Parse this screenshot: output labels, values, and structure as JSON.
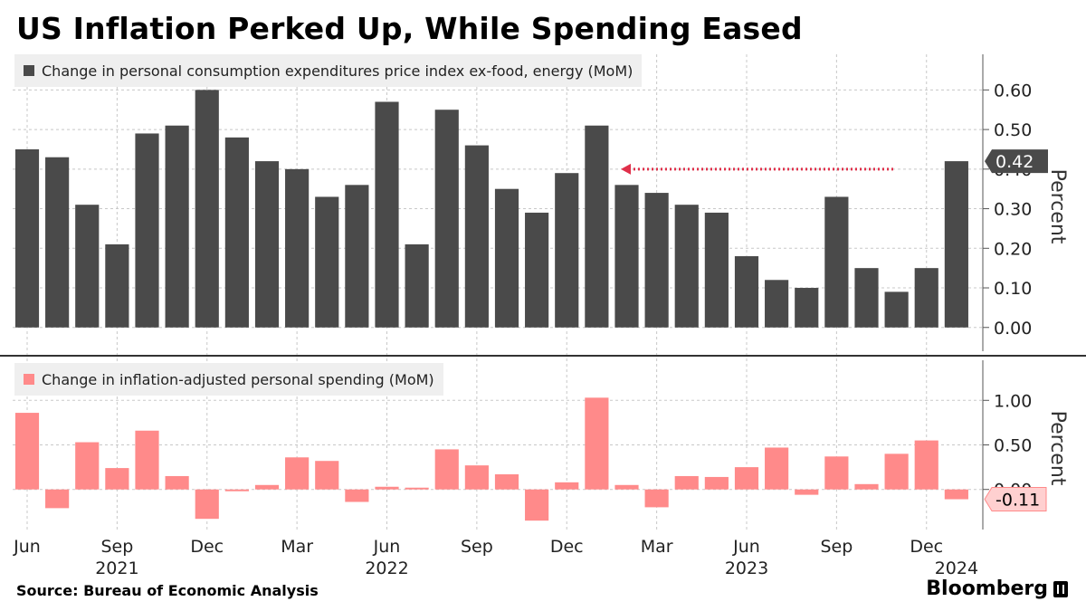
{
  "title": "US Inflation Perked Up, While Spending Eased",
  "source": "Source: Bureau of Economic Analysis",
  "brand": "Bloomberg",
  "colors": {
    "top_bars": "#4a4a4a",
    "bottom_bars": "#ff8a8a",
    "arrow": "#e0304a"
  },
  "chart_data": [
    {
      "type": "bar",
      "legend": "Change in personal consumption expenditures price index ex-food, energy (MoM)",
      "ylabel": "Percent",
      "ylim": [
        -0.06,
        0.69
      ],
      "yticks": [
        "0.60",
        "0.50",
        "0.40",
        "0.30",
        "0.20",
        "0.10",
        "0.00"
      ],
      "last_value_label": "0.42",
      "annotation": "arrow pointing left toward previous bars",
      "categories": [
        "2021-06",
        "2021-07",
        "2021-08",
        "2021-09",
        "2021-10",
        "2021-11",
        "2021-12",
        "2022-01",
        "2022-02",
        "2022-03",
        "2022-04",
        "2022-05",
        "2022-06",
        "2022-07",
        "2022-08",
        "2022-09",
        "2022-10",
        "2022-11",
        "2022-12",
        "2023-01",
        "2023-02",
        "2023-03",
        "2023-04",
        "2023-05",
        "2023-06",
        "2023-07",
        "2023-08",
        "2023-09",
        "2023-10",
        "2023-11",
        "2023-12",
        "2024-01"
      ],
      "values": [
        0.45,
        0.43,
        0.31,
        0.21,
        0.49,
        0.51,
        0.6,
        0.48,
        0.42,
        0.4,
        0.33,
        0.36,
        0.57,
        0.21,
        0.55,
        0.46,
        0.35,
        0.29,
        0.39,
        0.51,
        0.36,
        0.34,
        0.31,
        0.29,
        0.18,
        0.12,
        0.1,
        0.33,
        0.15,
        0.09,
        0.15,
        0.42
      ],
      "grid": true
    },
    {
      "type": "bar",
      "legend": "Change in inflation-adjusted personal spending (MoM)",
      "ylabel": "Percent",
      "ylim": [
        -0.45,
        1.45
      ],
      "yticks": [
        "1.00",
        "0.50",
        "0.00"
      ],
      "last_value_label": "-0.11",
      "categories": [
        "2021-06",
        "2021-07",
        "2021-08",
        "2021-09",
        "2021-10",
        "2021-11",
        "2021-12",
        "2022-01",
        "2022-02",
        "2022-03",
        "2022-04",
        "2022-05",
        "2022-06",
        "2022-07",
        "2022-08",
        "2022-09",
        "2022-10",
        "2022-11",
        "2022-12",
        "2023-01",
        "2023-02",
        "2023-03",
        "2023-04",
        "2023-05",
        "2023-06",
        "2023-07",
        "2023-08",
        "2023-09",
        "2023-10",
        "2023-11",
        "2023-12",
        "2024-01"
      ],
      "values": [
        0.86,
        -0.21,
        0.53,
        0.24,
        0.66,
        0.15,
        -0.33,
        -0.02,
        0.05,
        0.36,
        0.32,
        -0.14,
        0.03,
        0.02,
        0.45,
        0.27,
        0.17,
        -0.35,
        0.08,
        1.03,
        0.05,
        -0.2,
        0.15,
        0.14,
        0.25,
        0.47,
        -0.06,
        0.37,
        0.06,
        0.4,
        0.55,
        -0.11
      ],
      "grid": true
    }
  ],
  "x_axis": {
    "month_labels": [
      {
        "index": 0,
        "label": "Jun"
      },
      {
        "index": 3,
        "label": "Sep"
      },
      {
        "index": 6,
        "label": "Dec"
      },
      {
        "index": 9,
        "label": "Mar"
      },
      {
        "index": 12,
        "label": "Jun"
      },
      {
        "index": 15,
        "label": "Sep"
      },
      {
        "index": 18,
        "label": "Dec"
      },
      {
        "index": 21,
        "label": "Mar"
      },
      {
        "index": 24,
        "label": "Jun"
      },
      {
        "index": 27,
        "label": "Sep"
      },
      {
        "index": 30,
        "label": "Dec"
      }
    ],
    "year_labels": [
      {
        "index": 3,
        "label": "2021"
      },
      {
        "index": 12,
        "label": "2022"
      },
      {
        "index": 24,
        "label": "2023"
      },
      {
        "index": 31,
        "label": "2024"
      }
    ]
  }
}
